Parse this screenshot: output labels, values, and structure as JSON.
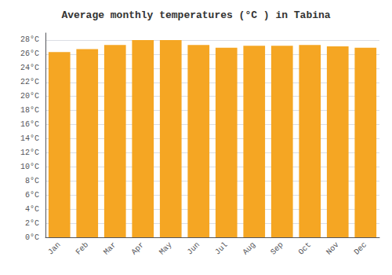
{
  "chart_data": {
    "type": "bar",
    "title": "Average monthly temperatures (°C ) in Tabina",
    "categories": [
      "Jan",
      "Feb",
      "Mar",
      "Apr",
      "May",
      "Jun",
      "Jul",
      "Aug",
      "Sep",
      "Oct",
      "Nov",
      "Dec"
    ],
    "values": [
      26.3,
      26.7,
      27.3,
      28.0,
      28.0,
      27.3,
      26.9,
      27.2,
      27.2,
      27.3,
      27.1,
      26.9
    ],
    "color": "#F5A623",
    "ylim": [
      0,
      29
    ],
    "yticks": [
      {
        "value": 0,
        "label": "0°C"
      },
      {
        "value": 2,
        "label": "2°C"
      },
      {
        "value": 4,
        "label": "4°C"
      },
      {
        "value": 6,
        "label": "6°C"
      },
      {
        "value": 8,
        "label": "8°C"
      },
      {
        "value": 10,
        "label": "10°C"
      },
      {
        "value": 12,
        "label": "12°C"
      },
      {
        "value": 14,
        "label": "14°C"
      },
      {
        "value": 16,
        "label": "16°C"
      },
      {
        "value": 18,
        "label": "18°C"
      },
      {
        "value": 20,
        "label": "20°C"
      },
      {
        "value": 22,
        "label": "22°C"
      },
      {
        "value": 24,
        "label": "24°C"
      },
      {
        "value": 26,
        "label": "26°C"
      },
      {
        "value": 28,
        "label": "28°C"
      }
    ],
    "grid": true
  }
}
